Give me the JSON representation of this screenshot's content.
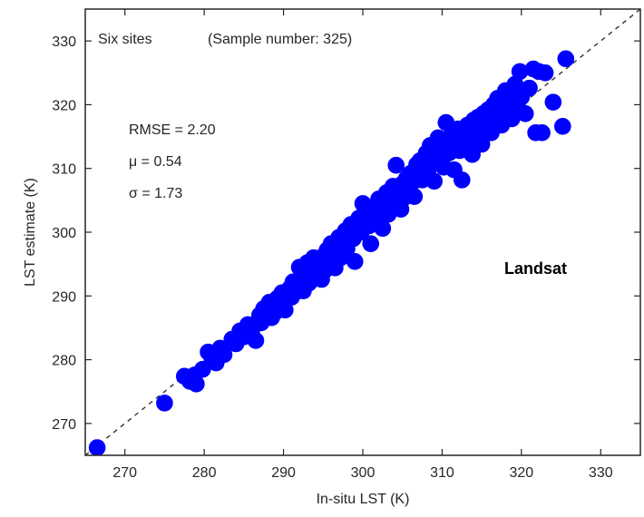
{
  "chart_data": {
    "type": "scatter",
    "title": "",
    "xlabel": "In-situ LST (K)",
    "ylabel": "LST estimate (K)",
    "xlim": [
      265,
      335
    ],
    "ylim": [
      265,
      335
    ],
    "xticks": [
      270,
      280,
      290,
      300,
      310,
      320,
      330
    ],
    "yticks": [
      270,
      280,
      290,
      300,
      310,
      320,
      330
    ],
    "grid": false,
    "legend": "none",
    "reference_line": {
      "label": "",
      "style": "dashed",
      "from": [
        265,
        265
      ],
      "to": [
        335,
        335
      ]
    },
    "annotations": {
      "sites": "Six sites",
      "sample_number": "(Sample number: 325)",
      "rmse": "RMSE = 2.20",
      "mu": "μ = 0.54",
      "sigma": "σ = 1.73",
      "sensor": "Landsat"
    },
    "colors": {
      "points": "#0000ff",
      "axes": "#262626",
      "text": "#262626",
      "reference_line": "#333333"
    },
    "series": [
      {
        "points": [
          [
            266.5,
            266.2
          ],
          [
            275.0,
            273.2
          ],
          [
            277.5,
            277.4
          ],
          [
            278.2,
            276.6
          ],
          [
            278.8,
            277.6
          ],
          [
            279.0,
            276.2
          ],
          [
            279.8,
            278.5
          ],
          [
            280.5,
            281.2
          ],
          [
            281.0,
            280.0
          ],
          [
            281.5,
            279.5
          ],
          [
            282.0,
            281.8
          ],
          [
            282.5,
            280.8
          ],
          [
            283.5,
            283.2
          ],
          [
            284.0,
            282.5
          ],
          [
            284.5,
            284.5
          ],
          [
            285.0,
            283.6
          ],
          [
            285.5,
            285.5
          ],
          [
            286.0,
            284.6
          ],
          [
            286.5,
            283.0
          ],
          [
            286.8,
            286.0
          ],
          [
            287.0,
            287.0
          ],
          [
            287.2,
            285.8
          ],
          [
            287.5,
            288.0
          ],
          [
            287.8,
            286.6
          ],
          [
            288.0,
            287.2
          ],
          [
            288.2,
            289.0
          ],
          [
            288.5,
            286.6
          ],
          [
            288.8,
            288.2
          ],
          [
            289.0,
            287.5
          ],
          [
            289.2,
            289.6
          ],
          [
            289.5,
            288.6
          ],
          [
            289.8,
            290.5
          ],
          [
            290.0,
            289.2
          ],
          [
            290.2,
            287.8
          ],
          [
            290.5,
            290.2
          ],
          [
            290.8,
            291.2
          ],
          [
            291.0,
            289.8
          ],
          [
            291.2,
            292.2
          ],
          [
            291.5,
            290.6
          ],
          [
            291.8,
            291.8
          ],
          [
            292.0,
            294.5
          ],
          [
            292.2,
            292.6
          ],
          [
            292.5,
            290.8
          ],
          [
            292.8,
            293.5
          ],
          [
            293.0,
            295.2
          ],
          [
            293.2,
            292.0
          ],
          [
            293.5,
            294.2
          ],
          [
            293.8,
            296.0
          ],
          [
            294.0,
            293.2
          ],
          [
            294.2,
            295.6
          ],
          [
            294.5,
            294.6
          ],
          [
            294.8,
            292.6
          ],
          [
            295.0,
            296.2
          ],
          [
            295.2,
            294.0
          ],
          [
            295.5,
            297.2
          ],
          [
            295.8,
            295.2
          ],
          [
            296.0,
            298.2
          ],
          [
            296.2,
            296.6
          ],
          [
            296.5,
            294.4
          ],
          [
            296.8,
            297.8
          ],
          [
            297.0,
            299.2
          ],
          [
            297.2,
            296.0
          ],
          [
            297.5,
            298.6
          ],
          [
            297.8,
            300.2
          ],
          [
            298.0,
            297.4
          ],
          [
            298.2,
            299.6
          ],
          [
            298.5,
            301.2
          ],
          [
            298.8,
            299.0
          ],
          [
            299.0,
            295.4
          ],
          [
            299.2,
            300.8
          ],
          [
            299.5,
            302.2
          ],
          [
            299.8,
            300.0
          ],
          [
            300.0,
            304.5
          ],
          [
            300.2,
            301.6
          ],
          [
            300.5,
            303.2
          ],
          [
            300.8,
            301.0
          ],
          [
            301.0,
            298.2
          ],
          [
            301.2,
            302.8
          ],
          [
            301.5,
            304.0
          ],
          [
            301.8,
            302.2
          ],
          [
            302.0,
            305.2
          ],
          [
            302.2,
            303.4
          ],
          [
            302.5,
            300.6
          ],
          [
            302.8,
            304.6
          ],
          [
            303.0,
            306.2
          ],
          [
            303.2,
            302.8
          ],
          [
            303.5,
            305.4
          ],
          [
            303.8,
            307.2
          ],
          [
            304.0,
            304.2
          ],
          [
            304.2,
            310.5
          ],
          [
            304.5,
            306.4
          ],
          [
            304.8,
            303.6
          ],
          [
            305.0,
            307.6
          ],
          [
            305.2,
            305.4
          ],
          [
            305.5,
            308.4
          ],
          [
            305.8,
            306.6
          ],
          [
            306.0,
            309.2
          ],
          [
            306.2,
            307.8
          ],
          [
            306.5,
            305.6
          ],
          [
            306.8,
            310.6
          ],
          [
            307.0,
            309.2
          ],
          [
            307.2,
            311.2
          ],
          [
            307.5,
            308.2
          ],
          [
            307.8,
            310.2
          ],
          [
            308.0,
            312.4
          ],
          [
            308.2,
            309.4
          ],
          [
            308.5,
            313.6
          ],
          [
            308.8,
            311.0
          ],
          [
            309.0,
            308.0
          ],
          [
            309.2,
            312.8
          ],
          [
            309.5,
            314.8
          ],
          [
            309.8,
            311.4
          ],
          [
            310.0,
            313.6
          ],
          [
            310.2,
            310.2
          ],
          [
            310.5,
            317.2
          ],
          [
            310.8,
            312.4
          ],
          [
            311.0,
            315.0
          ],
          [
            311.2,
            313.2
          ],
          [
            311.5,
            309.8
          ],
          [
            311.8,
            314.2
          ],
          [
            312.0,
            316.2
          ],
          [
            312.2,
            312.8
          ],
          [
            312.5,
            308.2
          ],
          [
            312.8,
            315.4
          ],
          [
            313.0,
            313.8
          ],
          [
            313.2,
            316.8
          ],
          [
            313.5,
            314.2
          ],
          [
            313.8,
            312.2
          ],
          [
            314.0,
            317.6
          ],
          [
            314.2,
            315.2
          ],
          [
            314.5,
            318.0
          ],
          [
            314.8,
            316.2
          ],
          [
            315.0,
            313.8
          ],
          [
            315.2,
            318.6
          ],
          [
            315.5,
            316.8
          ],
          [
            315.8,
            319.2
          ],
          [
            316.0,
            317.4
          ],
          [
            316.2,
            315.6
          ],
          [
            316.5,
            320.0
          ],
          [
            316.8,
            318.2
          ],
          [
            317.0,
            321.0
          ],
          [
            317.2,
            318.8
          ],
          [
            317.5,
            316.8
          ],
          [
            317.8,
            320.4
          ],
          [
            318.0,
            322.2
          ],
          [
            318.2,
            319.2
          ],
          [
            318.5,
            321.4
          ],
          [
            318.8,
            317.8
          ],
          [
            319.0,
            320.6
          ],
          [
            319.2,
            323.2
          ],
          [
            319.5,
            319.8
          ],
          [
            319.8,
            325.2
          ],
          [
            320.0,
            321.2
          ],
          [
            320.5,
            318.6
          ],
          [
            321.0,
            322.6
          ],
          [
            321.5,
            325.6
          ],
          [
            321.8,
            315.6
          ],
          [
            322.2,
            325.2
          ],
          [
            322.6,
            315.6
          ],
          [
            323.0,
            325.0
          ],
          [
            324.0,
            320.4
          ],
          [
            325.2,
            316.6
          ],
          [
            325.6,
            327.2
          ]
        ]
      }
    ]
  }
}
